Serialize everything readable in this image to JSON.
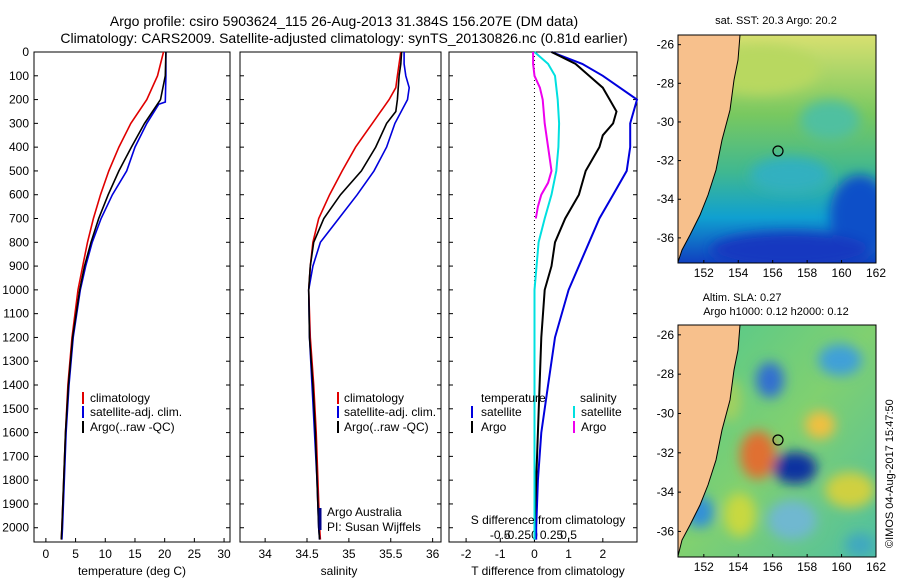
{
  "header": {
    "line1": "Argo profile: csiro 5903624_115 26-Aug-2013 31.384S 156.207E (DM data)",
    "line2": "Climatology: CARS2009. Satellite-adjusted climatology: synTS_20130826.nc (0.81d earlier)"
  },
  "colors": {
    "climatology": "#e00000",
    "satellite": "#0000dd",
    "argo": "#000000",
    "temp_sat": "#00e0e0",
    "sal_argo": "#ee00ee",
    "land": "#f7c08c"
  },
  "chart_data": [
    {
      "type": "line",
      "panel": "temperature",
      "xlabel": "temperature (deg C)",
      "ylabel": "",
      "xlim": [
        -2,
        31
      ],
      "ylim": [
        2060,
        0
      ],
      "xticks": [
        "0",
        "5",
        "10",
        "15",
        "20",
        "25",
        "30"
      ],
      "yticks": [
        "0",
        "100",
        "200",
        "300",
        "400",
        "500",
        "600",
        "700",
        "800",
        "900",
        "1000",
        "1100",
        "1200",
        "1300",
        "1400",
        "1500",
        "1600",
        "1700",
        "1800",
        "1900",
        "2000"
      ],
      "legend": [
        "climatology",
        "satellite-adj. clim.",
        "Argo(..raw -QC)"
      ],
      "series": [
        {
          "name": "climatology",
          "color": "#e00000",
          "depth": [
            0,
            100,
            200,
            300,
            400,
            500,
            600,
            700,
            800,
            900,
            1000,
            1200,
            1400,
            1600,
            1800,
            2000,
            2050
          ],
          "values": [
            19.8,
            18.8,
            17,
            14.3,
            12.3,
            10.6,
            9.2,
            8,
            7,
            6.2,
            5.4,
            4.4,
            3.7,
            3.3,
            3,
            2.7,
            2.6
          ]
        },
        {
          "name": "satellite-adj. clim.",
          "color": "#0000dd",
          "depth": [
            0,
            100,
            210,
            220,
            300,
            400,
            500,
            600,
            700,
            800,
            900,
            1000,
            1200,
            1400,
            1600,
            1800,
            2000,
            2050
          ],
          "values": [
            20.2,
            20.2,
            20.1,
            19,
            17,
            15,
            13.6,
            11.2,
            9.3,
            7.8,
            6.7,
            5.8,
            4.6,
            3.9,
            3.4,
            3.1,
            2.8,
            2.7
          ]
        },
        {
          "name": "Argo(..raw -QC)",
          "color": "#000000",
          "depth": [
            0,
            100,
            200,
            300,
            400,
            500,
            600,
            700,
            800,
            900,
            1000,
            1200,
            1400,
            1600,
            1800,
            2000,
            2050
          ],
          "values": [
            20.2,
            20.1,
            19.3,
            16.6,
            14.4,
            12.3,
            10.5,
            8.9,
            7.6,
            6.5,
            5.7,
            4.5,
            3.8,
            3.3,
            3,
            2.7,
            2.6
          ]
        }
      ]
    },
    {
      "type": "line",
      "panel": "salinity",
      "xlabel": "salinity",
      "xlim": [
        33.7,
        36.1
      ],
      "ylim": [
        2060,
        0
      ],
      "xticks": [
        "34",
        "34.5",
        "35",
        "35.5",
        "36"
      ],
      "legend": [
        "climatology",
        "satellite-adj. clim.",
        "Argo(..raw -QC)"
      ],
      "annotation": [
        "Argo Australia",
        "PI: Susan Wijffels"
      ],
      "series": [
        {
          "name": "climatology",
          "color": "#e00000",
          "depth": [
            0,
            50,
            100,
            150,
            200,
            300,
            400,
            500,
            600,
            700,
            800,
            900,
            1000,
            1200,
            1400,
            1600,
            1800,
            2000,
            2050
          ],
          "values": [
            35.62,
            35.6,
            35.58,
            35.56,
            35.48,
            35.28,
            35.08,
            34.92,
            34.77,
            34.64,
            34.57,
            34.54,
            34.52,
            34.54,
            34.58,
            34.61,
            34.63,
            34.65,
            34.66
          ]
        },
        {
          "name": "satellite-adj. clim.",
          "color": "#0000dd",
          "depth": [
            0,
            50,
            100,
            150,
            200,
            300,
            400,
            500,
            600,
            700,
            800,
            900,
            1000,
            1200,
            1400,
            1600,
            1800,
            2000,
            2050
          ],
          "values": [
            35.66,
            35.66,
            35.68,
            35.72,
            35.7,
            35.55,
            35.45,
            35.3,
            35.1,
            34.88,
            34.66,
            34.57,
            34.52,
            34.53,
            34.56,
            34.59,
            34.62,
            34.64,
            34.65
          ]
        },
        {
          "name": "Argo(..raw -QC)",
          "color": "#000000",
          "depth": [
            0,
            50,
            100,
            200,
            250,
            300,
            400,
            500,
            600,
            700,
            800,
            900,
            1000,
            1200,
            1400,
            1600,
            1800,
            2000,
            2050
          ],
          "values": [
            35.63,
            35.62,
            35.6,
            35.58,
            35.56,
            35.45,
            35.32,
            35.15,
            34.9,
            34.7,
            34.58,
            34.54,
            34.52,
            34.53,
            34.57,
            34.6,
            34.62,
            34.64,
            34.65
          ]
        }
      ]
    },
    {
      "type": "line",
      "panel": "difference",
      "xlabel": "T difference from climatology",
      "xlabel_top": "S difference from climatology",
      "xlim": [
        -2.5,
        3
      ],
      "ylim": [
        2060,
        0
      ],
      "xticks": [
        "-2",
        "-1",
        "0",
        "1",
        "2"
      ],
      "sticks": [
        "-0.5",
        "-0.25",
        "0",
        "0.25",
        "0.5"
      ],
      "legend_temperature": {
        "title": "temperature",
        "items": [
          "satellite",
          "Argo"
        ]
      },
      "legend_salinity": {
        "title": "salinity",
        "items": [
          "satellite",
          "Argo"
        ]
      },
      "series": [
        {
          "name": "temperature satellite",
          "color": "#0000dd",
          "depth": [
            0,
            50,
            100,
            200,
            300,
            400,
            500,
            600,
            700,
            800,
            1000,
            1200,
            1400,
            1600,
            1800,
            2000,
            2050
          ],
          "values": [
            0.5,
            1.4,
            2,
            3,
            2.8,
            2.8,
            2.7,
            2.3,
            1.9,
            1.6,
            1,
            0.6,
            0.4,
            0.2,
            0.1,
            0.05,
            0.05
          ]
        },
        {
          "name": "temperature Argo",
          "color": "#000000",
          "depth": [
            0,
            50,
            100,
            150,
            200,
            250,
            300,
            350,
            400,
            500,
            600,
            700,
            800,
            900,
            1000,
            1200,
            1400,
            1600,
            1800,
            2000,
            2050
          ],
          "values": [
            0.5,
            1.2,
            1.6,
            2,
            2.2,
            2.4,
            2.3,
            2,
            1.9,
            1.5,
            1.3,
            0.9,
            0.6,
            0.5,
            0.3,
            0.2,
            0.15,
            0.1,
            0.05,
            0,
            0
          ]
        },
        {
          "name": "salinity satellite",
          "color": "#00e0e0",
          "depth": [
            0,
            50,
            100,
            200,
            300,
            400,
            500,
            600,
            700,
            800,
            1000,
            1200,
            1400,
            1600,
            1800,
            2000,
            2050
          ],
          "values": [
            0,
            0.2,
            0.3,
            0.34,
            0.36,
            0.35,
            0.32,
            0.25,
            0.15,
            0.06,
            0,
            0,
            0,
            0,
            0,
            0,
            0
          ]
        },
        {
          "name": "salinity Argo",
          "color": "#ee00ee",
          "depth": [
            0,
            50,
            100,
            150,
            200,
            300,
            400,
            500,
            550,
            600,
            650,
            700
          ],
          "values": [
            -0.02,
            -0.02,
            0,
            0.08,
            0.12,
            0.15,
            0.2,
            0.25,
            0.2,
            0.1,
            0.05,
            0.02
          ]
        }
      ]
    },
    {
      "type": "heatmap",
      "panel": "sst-map",
      "title": "sat. SST: 20.3 Argo: 20.2",
      "xticks": [
        "152",
        "154",
        "156",
        "158",
        "160",
        "162"
      ],
      "yticks": [
        "-26",
        "-28",
        "-30",
        "-32",
        "-34",
        "-36"
      ],
      "xlim": [
        150.5,
        162
      ],
      "ylim": [
        -37.3,
        -25.5
      ],
      "argo_position": {
        "lon": 156.207,
        "lat": -31.384
      }
    },
    {
      "type": "heatmap",
      "panel": "sla-map",
      "title": "Altim. SLA: 0.27",
      "subtitle": "Argo h1000: 0.12 h2000: 0.12",
      "xticks": [
        "152",
        "154",
        "156",
        "158",
        "160",
        "162"
      ],
      "yticks": [
        "-26",
        "-28",
        "-30",
        "-32",
        "-34",
        "-36"
      ],
      "xlim": [
        150.5,
        162
      ],
      "ylim": [
        -37.3,
        -25.5
      ],
      "argo_position": {
        "lon": 156.207,
        "lat": -31.384
      }
    }
  ],
  "credit": "©IMOS 04-Aug-2017 15:47:50"
}
